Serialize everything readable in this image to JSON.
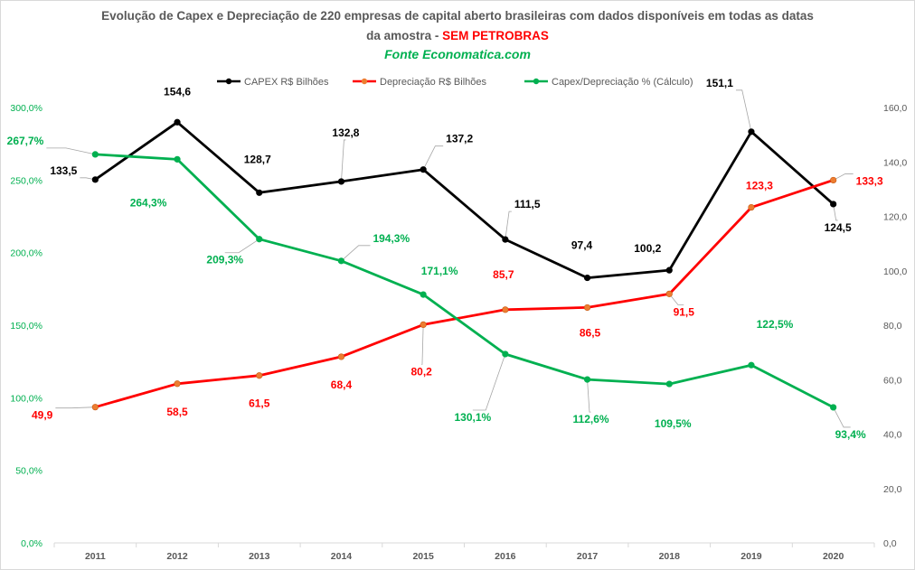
{
  "title": {
    "line1": "Evolução de Capex e Depreciação de 220 empresas de capital aberto brasileiras com dados disponíveis em todas as datas",
    "line2_main": "da amostra - ",
    "line2_highlight": "SEM PETROBRAS",
    "source": "Fonte Economatica.com"
  },
  "colors": {
    "capex": "#000000",
    "depreciacao": "#ff0000",
    "depreciacao_marker": "#ed7d31",
    "ratio": "#00b050",
    "axis_text": "#595959",
    "leader": "#a6a6a6"
  },
  "chart_data": {
    "type": "line",
    "categories": [
      "2011",
      "2012",
      "2013",
      "2014",
      "2015",
      "2016",
      "2017",
      "2018",
      "2019",
      "2020"
    ],
    "series": [
      {
        "name": "CAPEX R$ Bilhões",
        "axis": "right",
        "color": "#000000",
        "values": [
          133.5,
          154.6,
          128.7,
          132.8,
          137.2,
          111.5,
          97.4,
          100.2,
          151.1,
          124.5
        ],
        "labels": [
          "133,5",
          "154,6",
          "128,7",
          "132,8",
          "137,2",
          "111,5",
          "97,4",
          "100,2",
          "151,1",
          "124,5"
        ]
      },
      {
        "name": "Depreciação R$ Bilhões",
        "axis": "right",
        "color": "#ff0000",
        "values": [
          49.9,
          58.5,
          61.5,
          68.4,
          80.2,
          85.7,
          86.5,
          91.5,
          123.3,
          133.3
        ],
        "labels": [
          "49,9",
          "58,5",
          "61,5",
          "68,4",
          "80,2",
          "85,7",
          "86,5",
          "91,5",
          "123,3",
          "133,3"
        ]
      },
      {
        "name": "Capex/Depreciação % (Cálculo)",
        "axis": "left",
        "color": "#00b050",
        "values": [
          267.7,
          264.3,
          209.3,
          194.3,
          171.1,
          130.1,
          112.6,
          109.5,
          122.5,
          93.4
        ],
        "labels": [
          "267,7%",
          "264,3%",
          "209,3%",
          "194,3%",
          "171,1%",
          "130,1%",
          "112,6%",
          "109,5%",
          "122,5%",
          "93,4%"
        ]
      }
    ],
    "y_left": {
      "range": [
        0,
        300
      ],
      "ticks": [
        "0,0%",
        "50,0%",
        "100,0%",
        "150,0%",
        "200,0%",
        "250,0%",
        "300,0%"
      ]
    },
    "y_right": {
      "range": [
        0,
        160
      ],
      "ticks": [
        "0,0",
        "20,0",
        "40,0",
        "60,0",
        "80,0",
        "100,0",
        "120,0",
        "140,0",
        "160,0"
      ]
    },
    "grid": false,
    "legend_position": "top"
  }
}
